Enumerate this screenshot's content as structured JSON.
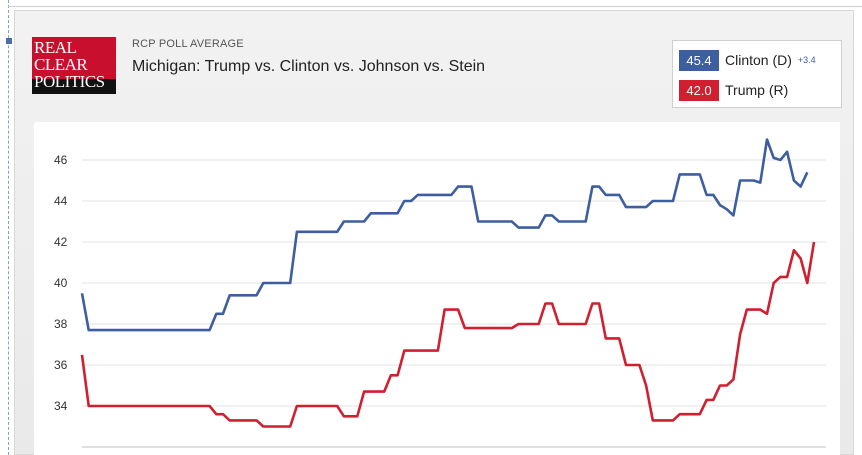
{
  "header": {
    "logo_text": "REAL CLEAR POLITICS",
    "subtitle": "RCP POLL AVERAGE",
    "title": "Michigan: Trump vs. Clinton vs. Johnson vs. Stein"
  },
  "legend": [
    {
      "value": "45.4",
      "name": "Clinton (D)",
      "spread": "+3.4",
      "color": "#3d5ea0"
    },
    {
      "value": "42.0",
      "name": "Trump (R)",
      "spread": "",
      "color": "#d01f2e"
    }
  ],
  "chart_data": {
    "type": "line",
    "ylim": [
      32,
      47
    ],
    "yticks": [
      "34",
      "36",
      "38",
      "40",
      "42",
      "44",
      "46"
    ],
    "grid": true,
    "x_index_max": 100,
    "series": [
      {
        "name": "Clinton (D)",
        "color": "#3d5ea0",
        "points": [
          [
            0,
            39.5
          ],
          [
            1,
            37.7
          ],
          [
            3,
            37.7
          ],
          [
            19,
            37.7
          ],
          [
            20,
            38.5
          ],
          [
            21,
            38.5
          ],
          [
            22,
            39.4
          ],
          [
            26,
            39.4
          ],
          [
            27,
            40
          ],
          [
            31,
            40
          ],
          [
            32,
            42.5
          ],
          [
            38,
            42.5
          ],
          [
            39,
            43
          ],
          [
            42,
            43
          ],
          [
            43,
            43.4
          ],
          [
            47,
            43.4
          ],
          [
            48,
            44
          ],
          [
            49,
            44
          ],
          [
            50,
            44.3
          ],
          [
            55,
            44.3
          ],
          [
            56,
            44.7
          ],
          [
            58,
            44.7
          ],
          [
            59,
            43
          ],
          [
            64,
            43
          ],
          [
            65,
            42.7
          ],
          [
            68,
            42.7
          ],
          [
            69,
            43.3
          ],
          [
            70,
            43.3
          ],
          [
            71,
            43
          ],
          [
            75,
            43
          ],
          [
            76,
            44.7
          ],
          [
            77,
            44.7
          ],
          [
            78,
            44.3
          ],
          [
            80,
            44.3
          ],
          [
            81,
            43.7
          ],
          [
            84,
            43.7
          ],
          [
            85,
            44
          ],
          [
            88,
            44
          ],
          [
            89,
            45.3
          ],
          [
            92,
            45.3
          ],
          [
            93,
            44.3
          ],
          [
            94,
            44.3
          ],
          [
            95,
            43.8
          ],
          [
            96,
            43.6
          ],
          [
            97,
            43.3
          ],
          [
            98,
            45
          ],
          [
            100,
            45
          ],
          [
            101,
            44.9
          ],
          [
            102,
            47
          ],
          [
            103,
            46.1
          ],
          [
            104,
            46
          ],
          [
            105,
            46.4
          ],
          [
            106,
            45
          ],
          [
            107,
            44.7
          ],
          [
            108,
            45.4
          ]
        ]
      },
      {
        "name": "Trump (R)",
        "color": "#d01f2e",
        "points": [
          [
            0,
            36.5
          ],
          [
            1,
            34
          ],
          [
            19,
            34
          ],
          [
            20,
            33.6
          ],
          [
            21,
            33.6
          ],
          [
            22,
            33.3
          ],
          [
            26,
            33.3
          ],
          [
            27,
            33
          ],
          [
            31,
            33
          ],
          [
            32,
            34
          ],
          [
            38,
            34
          ],
          [
            39,
            33.5
          ],
          [
            41,
            33.5
          ],
          [
            42,
            34.7
          ],
          [
            45,
            34.7
          ],
          [
            46,
            35.5
          ],
          [
            47,
            35.5
          ],
          [
            48,
            36.7
          ],
          [
            53,
            36.7
          ],
          [
            54,
            38.7
          ],
          [
            56,
            38.7
          ],
          [
            57,
            37.8
          ],
          [
            64,
            37.8
          ],
          [
            65,
            38
          ],
          [
            68,
            38
          ],
          [
            69,
            39
          ],
          [
            70,
            39
          ],
          [
            71,
            38
          ],
          [
            75,
            38
          ],
          [
            76,
            39
          ],
          [
            77,
            39
          ],
          [
            78,
            37.3
          ],
          [
            80,
            37.3
          ],
          [
            81,
            36
          ],
          [
            83,
            36
          ],
          [
            84,
            35
          ],
          [
            85,
            33.3
          ],
          [
            88,
            33.3
          ],
          [
            89,
            33.6
          ],
          [
            92,
            33.6
          ],
          [
            93,
            34.3
          ],
          [
            94,
            34.3
          ],
          [
            95,
            35
          ],
          [
            96,
            35
          ],
          [
            97,
            35.3
          ],
          [
            98,
            37.5
          ],
          [
            99,
            38.7
          ],
          [
            101,
            38.7
          ],
          [
            102,
            38.5
          ],
          [
            103,
            40
          ],
          [
            104,
            40.3
          ],
          [
            105,
            40.3
          ],
          [
            106,
            41.6
          ],
          [
            107,
            41.2
          ],
          [
            108,
            40
          ],
          [
            109,
            42
          ]
        ]
      }
    ]
  }
}
